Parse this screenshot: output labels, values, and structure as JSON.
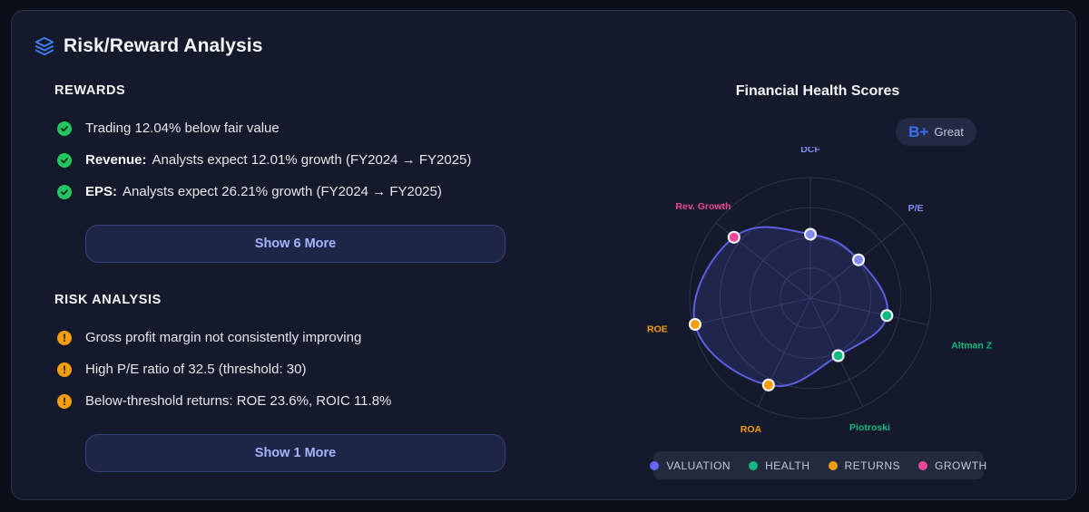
{
  "header": {
    "title": "Risk/Reward Analysis",
    "icon": "layers-icon"
  },
  "rewards": {
    "title": "REWARDS",
    "items": [
      {
        "label": "",
        "text": "Trading 12.04% below fair value"
      },
      {
        "label": "Revenue:",
        "text": "Analysts expect 12.01% growth (FY2024 → FY2025)"
      },
      {
        "label": "EPS:",
        "text": "Analysts expect 26.21% growth (FY2024 → FY2025)"
      }
    ],
    "more_label": "Show 6 More"
  },
  "risks": {
    "title": "RISK ANALYSIS",
    "items": [
      {
        "text": "Gross profit margin not consistently improving"
      },
      {
        "text": "High P/E ratio of 32.5 (threshold: 30)"
      },
      {
        "text": "Below-threshold returns: ROE 23.6%, ROIC 11.8%"
      }
    ],
    "more_label": "Show 1 More"
  },
  "chart": {
    "title": "Financial Health Scores",
    "grade": "B+",
    "grade_label": "Great",
    "legend": [
      {
        "name": "VALUATION",
        "color": "#6366f1"
      },
      {
        "name": "HEALTH",
        "color": "#10b981"
      },
      {
        "name": "RETURNS",
        "color": "#f59e0b"
      },
      {
        "name": "GROWTH",
        "color": "#ec4899"
      }
    ]
  },
  "chart_data": {
    "type": "radar",
    "title": "Financial Health Scores",
    "scale": [
      0,
      1
    ],
    "axes": [
      {
        "name": "DCF",
        "value": 0.53,
        "category": "VALUATION",
        "color": "#818cf8"
      },
      {
        "name": "P/E",
        "value": 0.51,
        "category": "VALUATION",
        "color": "#818cf8"
      },
      {
        "name": "Altman Z",
        "value": 0.65,
        "category": "HEALTH",
        "color": "#10b981"
      },
      {
        "name": "Piotroski",
        "value": 0.53,
        "category": "HEALTH",
        "color": "#10b981"
      },
      {
        "name": "ROA",
        "value": 0.8,
        "category": "RETURNS",
        "color": "#f59e0b"
      },
      {
        "name": "ROE",
        "value": 0.98,
        "category": "RETURNS",
        "color": "#f59e0b"
      },
      {
        "name": "Rev. Growth",
        "value": 0.81,
        "category": "GROWTH",
        "color": "#ec4899"
      }
    ],
    "grid_rings": 4
  }
}
